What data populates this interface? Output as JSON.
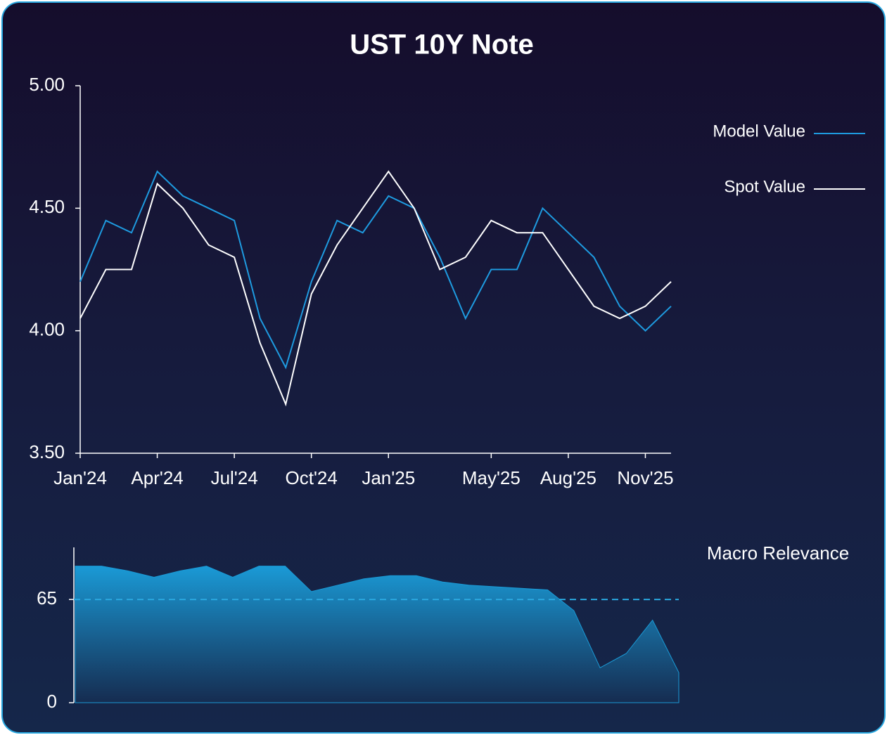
{
  "chart_data": [
    {
      "type": "line",
      "title": "UST 10Y Note",
      "x": [
        "2024-01",
        "2024-02",
        "2024-03",
        "2024-04",
        "2024-05",
        "2024-06",
        "2024-07",
        "2024-08",
        "2024-09",
        "2024-10",
        "2024-11",
        "2024-12",
        "2025-01",
        "2025-02",
        "2025-03",
        "2025-04",
        "2025-05",
        "2025-06",
        "2025-07",
        "2025-08",
        "2025-09",
        "2025-10",
        "2025-11",
        "2025-12"
      ],
      "series": [
        {
          "name": "Model Value",
          "color": "#1e9be0",
          "values": [
            4.2,
            4.45,
            4.4,
            4.65,
            4.55,
            4.5,
            4.45,
            4.05,
            3.85,
            4.2,
            4.45,
            4.4,
            4.55,
            4.5,
            4.3,
            4.05,
            4.25,
            4.25,
            4.5,
            4.4,
            4.3,
            4.1,
            4.0,
            4.1
          ]
        },
        {
          "name": "Spot Value",
          "color": "#ffffff",
          "values": [
            4.05,
            4.25,
            4.25,
            4.6,
            4.5,
            4.35,
            4.3,
            3.95,
            3.7,
            4.15,
            4.35,
            4.5,
            4.65,
            4.5,
            4.25,
            4.3,
            4.45,
            4.4,
            4.4,
            4.25,
            4.1,
            4.05,
            4.1,
            4.2
          ]
        }
      ],
      "ylim": [
        3.5,
        5.0
      ],
      "yticks": [
        {
          "value": 3.5,
          "label": "3.50"
        },
        {
          "value": 4,
          "label": "4.00"
        },
        {
          "value": 4.5,
          "label": "4.50"
        },
        {
          "value": 5,
          "label": "5.00"
        }
      ],
      "xticks": [
        {
          "value": "2024-01",
          "label": "Jan'24"
        },
        {
          "value": "2024-04",
          "label": "Apr'24"
        },
        {
          "value": "2024-07",
          "label": "Jul'24"
        },
        {
          "value": "2024-10",
          "label": "Oct'24"
        },
        {
          "value": "2025-01",
          "label": "Jan'25"
        },
        {
          "value": "2025-05",
          "label": "May'25"
        },
        {
          "value": "2025-08",
          "label": "Aug'25"
        },
        {
          "value": "2025-11",
          "label": "Nov'25"
        }
      ]
    },
    {
      "type": "area",
      "title": "Macro Relevance",
      "color": "#1a9ad6",
      "x": [
        "2024-01",
        "2024-02",
        "2024-03",
        "2024-04",
        "2024-05",
        "2024-06",
        "2024-07",
        "2024-08",
        "2024-09",
        "2024-10",
        "2024-11",
        "2024-12",
        "2025-01",
        "2025-02",
        "2025-03",
        "2025-04",
        "2025-05",
        "2025-06",
        "2025-07",
        "2025-08",
        "2025-09",
        "2025-10",
        "2025-11",
        "2025-12"
      ],
      "values": [
        86,
        86,
        83,
        79,
        83,
        86,
        79,
        86,
        86,
        70,
        74,
        78,
        80,
        80,
        76,
        74,
        73,
        72,
        71,
        58,
        22,
        31,
        52,
        19
      ],
      "ylim": [
        0,
        100
      ],
      "yticks": [
        0,
        65
      ]
    }
  ]
}
